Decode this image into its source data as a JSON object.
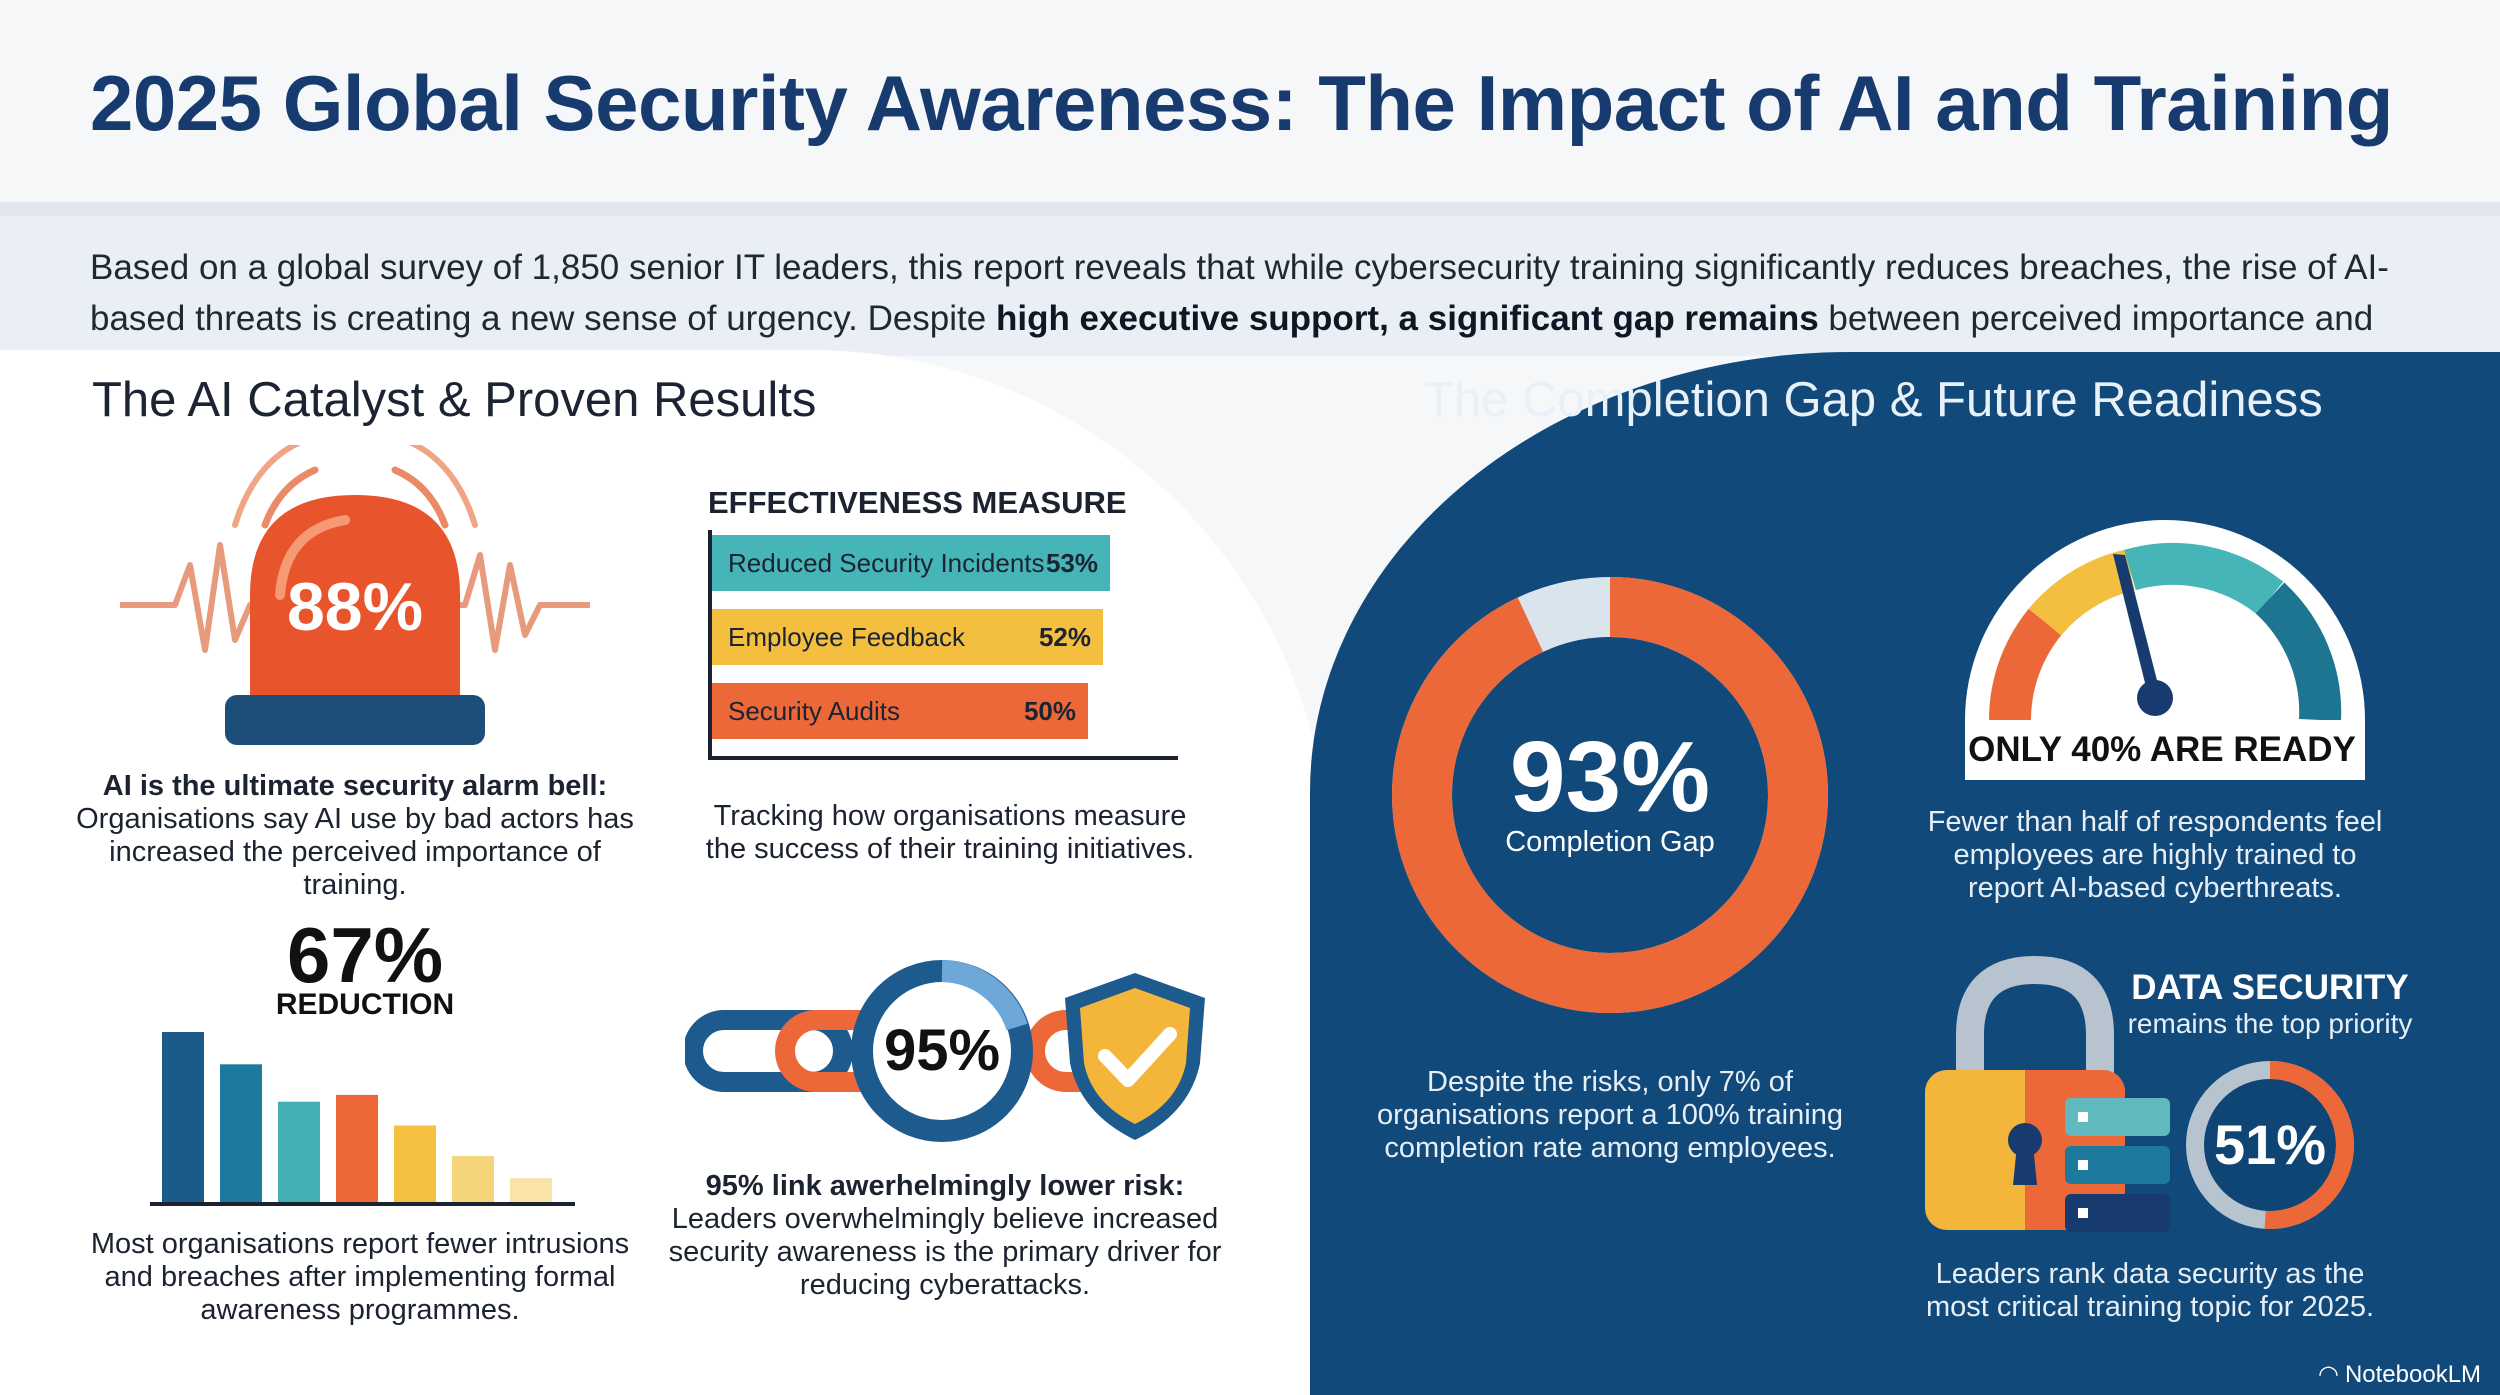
{
  "header": {
    "title": "2025 Global Security Awareness: The Impact of AI and Training",
    "intro_part1": "Based on a global survey of 1,850 senior IT leaders, this report reveals that while cybersecurity training significantly reduces breaches, the rise of AI-based threats is creating a new sense of urgency. Despite ",
    "intro_bold1": "high executive support",
    "intro_part2": ", ",
    "intro_bold2": "a significant gap remains",
    "intro_part3": " between perceived importance and actual training completion."
  },
  "left": {
    "section_title": "The AI Catalyst & Proven Results",
    "alarm": {
      "value": "88%",
      "caption_bold": "AI is the ultimate security alarm bell:",
      "caption": "Organisations say AI use by bad actors has increased the perceived importance of training.",
      "icon": "alarm-siren-icon"
    },
    "effectiveness": {
      "title": "EFFECTIVENESS MEASURE",
      "bars": [
        {
          "label": "Reduced Security Incidents",
          "value": "53%",
          "pct": 53,
          "color": "#45b5b7"
        },
        {
          "label": "Employee Feedback",
          "value": "52%",
          "pct": 52,
          "color": "#f4bf3e"
        },
        {
          "label": "Security Audits",
          "value": "50%",
          "pct": 50,
          "color": "#ec6838"
        }
      ],
      "caption": "Tracking how organisations measure the success of their training initiatives."
    },
    "reduction": {
      "value": "67%",
      "label": "REDUCTION",
      "bars": [
        1.0,
        0.81,
        0.59,
        0.63,
        0.45,
        0.27,
        0.14
      ],
      "colors": [
        "#1a5b8c",
        "#1e7a9c",
        "#40b0b5",
        "#ec6838",
        "#f3c03f",
        "#f6d47a",
        "#f9e3a8"
      ],
      "caption": "Most organisations report fewer intrusions and breaches after implementing formal awareness programmes."
    },
    "risk": {
      "value": "95%",
      "caption_bold": "95% link awerhelmingly lower risk:",
      "caption": "Leaders overwhelmingly believe increased security awareness is the primary driver for reducing cyberattacks.",
      "icons": [
        "chain-link-icon",
        "shield-check-icon"
      ]
    }
  },
  "right": {
    "section_title": "The Completion Gap & Future Readiness",
    "completion": {
      "value": "93%",
      "label": "Completion Gap",
      "fill_fraction": 0.93,
      "caption": "Despite the risks, only 7% of organisations report a 100% training completion rate among employees."
    },
    "readiness": {
      "label": "ONLY 40% ARE READY",
      "caption": "Fewer than half of respondents feel employees are highly trained to report AI-based cyberthreats.",
      "icon": "speedometer-gauge-icon"
    },
    "data_security": {
      "title": "DATA SECURITY",
      "subtitle": "remains the top priority",
      "value": "51%",
      "fill_fraction": 0.51,
      "caption": "Leaders rank data security as the most critical training topic for 2025.",
      "icons": [
        "padlock-icon",
        "server-stack-icon"
      ]
    },
    "brand": "NotebookLM"
  }
}
